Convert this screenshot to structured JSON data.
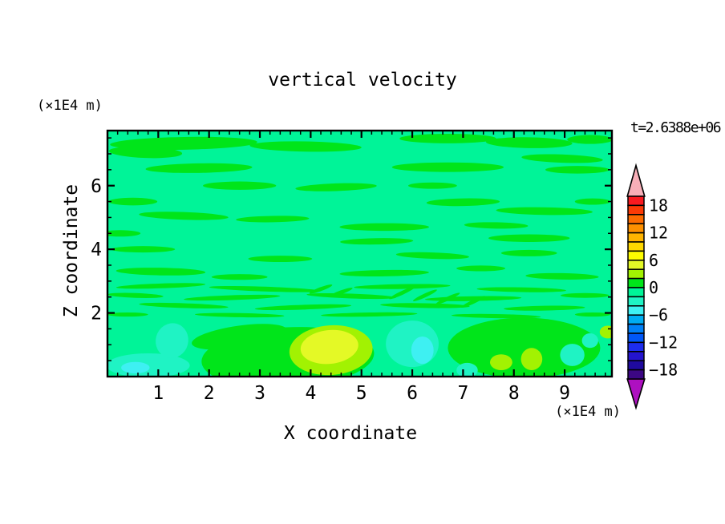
{
  "page": {
    "background": "#FFFFFF"
  },
  "chart_data": {
    "type": "filled-contour",
    "title": "vertical velocity",
    "timestamp_label": "t=2.6388e+06",
    "x_axis": {
      "label": "X coordinate",
      "units": "(×1E4 m)",
      "range": [
        0,
        9.93
      ],
      "major_ticks": [
        1,
        2,
        3,
        4,
        5,
        6,
        7,
        8,
        9
      ],
      "minor_tick_interval": 0.2
    },
    "y_axis": {
      "label": "Z coordinate",
      "units": "(×1E4 m)",
      "range": [
        0,
        7.73
      ],
      "major_ticks": [
        2,
        4,
        6
      ],
      "minor_tick_interval": 0.5
    },
    "colorbar": {
      "label_values": [
        18,
        12,
        6,
        0,
        -6,
        -12,
        -18
      ],
      "band_interval": 2,
      "value_range": [
        -20,
        20
      ],
      "over_color": "#F8AFB8",
      "under_color": "#AE10C0",
      "bands": [
        {
          "range": [
            18,
            20
          ],
          "color": "#F81A20"
        },
        {
          "range": [
            16,
            18
          ],
          "color": "#FB3A06"
        },
        {
          "range": [
            14,
            16
          ],
          "color": "#FD6B00"
        },
        {
          "range": [
            12,
            14
          ],
          "color": "#FE9000"
        },
        {
          "range": [
            10,
            12
          ],
          "color": "#FFB400"
        },
        {
          "range": [
            8,
            10
          ],
          "color": "#FFD800"
        },
        {
          "range": [
            6,
            8
          ],
          "color": "#FDFC00"
        },
        {
          "range": [
            4,
            6
          ],
          "color": "#E4F926"
        },
        {
          "range": [
            2,
            4
          ],
          "color": "#A2F202"
        },
        {
          "range": [
            0,
            2
          ],
          "color": "#00E51A"
        },
        {
          "range": [
            -2,
            0
          ],
          "color": "#00F498"
        },
        {
          "range": [
            -4,
            -2
          ],
          "color": "#1FF3C4"
        },
        {
          "range": [
            -6,
            -4
          ],
          "color": "#3EF0F2"
        },
        {
          "range": [
            -8,
            -6
          ],
          "color": "#00ACF2"
        },
        {
          "range": [
            -10,
            -8
          ],
          "color": "#0080F8"
        },
        {
          "range": [
            -12,
            -10
          ],
          "color": "#0057F8"
        },
        {
          "range": [
            -14,
            -12
          ],
          "color": "#1D2DEE"
        },
        {
          "range": [
            -16,
            -14
          ],
          "color": "#2414CF"
        },
        {
          "range": [
            -18,
            -16
          ],
          "color": "#1F0A9E"
        },
        {
          "range": [
            -20,
            -18
          ],
          "color": "#3C0784"
        }
      ]
    },
    "field": {
      "background_band_index": 10,
      "shape_format": [
        "band_index",
        "cx",
        "cy",
        "rx",
        "ry",
        "rot_deg"
      ],
      "shapes": [
        [
          9,
          1.5,
          7.33,
          1.45,
          0.2,
          -1
        ],
        [
          9,
          0.75,
          7.05,
          0.72,
          0.18,
          2
        ],
        [
          9,
          3.9,
          7.23,
          1.1,
          0.16,
          1
        ],
        [
          9,
          6.7,
          7.48,
          0.95,
          0.15,
          0
        ],
        [
          9,
          8.3,
          7.35,
          0.85,
          0.17,
          1
        ],
        [
          9,
          9.5,
          7.45,
          0.45,
          0.14,
          0
        ],
        [
          9,
          1.8,
          6.55,
          1.05,
          0.15,
          -1
        ],
        [
          9,
          6.7,
          6.58,
          1.1,
          0.15,
          0
        ],
        [
          9,
          8.95,
          6.85,
          0.8,
          0.13,
          2
        ],
        [
          9,
          9.25,
          6.5,
          0.63,
          0.12,
          0
        ],
        [
          9,
          2.6,
          6.0,
          0.72,
          0.13,
          0
        ],
        [
          9,
          4.5,
          5.95,
          0.8,
          0.12,
          -2
        ],
        [
          9,
          6.4,
          6.0,
          0.48,
          0.1,
          0
        ],
        [
          9,
          0.5,
          5.5,
          0.48,
          0.12,
          0
        ],
        [
          9,
          7.0,
          5.48,
          0.72,
          0.12,
          -1
        ],
        [
          9,
          9.55,
          5.5,
          0.35,
          0.1,
          0
        ],
        [
          9,
          1.5,
          5.05,
          0.88,
          0.12,
          2
        ],
        [
          9,
          3.25,
          4.95,
          0.72,
          0.1,
          -1
        ],
        [
          9,
          8.6,
          5.2,
          0.95,
          0.12,
          1
        ],
        [
          9,
          0.25,
          4.5,
          0.4,
          0.1,
          0
        ],
        [
          9,
          5.45,
          4.7,
          0.88,
          0.12,
          0
        ],
        [
          9,
          7.65,
          4.75,
          0.63,
          0.1,
          1
        ],
        [
          9,
          5.3,
          4.25,
          0.72,
          0.1,
          -1
        ],
        [
          9,
          8.3,
          4.35,
          0.8,
          0.12,
          0
        ],
        [
          9,
          0.7,
          4.0,
          0.63,
          0.1,
          0
        ],
        [
          9,
          6.4,
          3.8,
          0.72,
          0.1,
          2
        ],
        [
          9,
          3.4,
          3.7,
          0.63,
          0.1,
          0
        ],
        [
          9,
          8.3,
          3.88,
          0.55,
          0.1,
          0
        ],
        [
          9,
          1.05,
          3.3,
          0.88,
          0.12,
          1
        ],
        [
          9,
          5.45,
          3.25,
          0.88,
          0.1,
          -1
        ],
        [
          9,
          8.95,
          3.15,
          0.72,
          0.1,
          1
        ],
        [
          9,
          2.6,
          3.13,
          0.55,
          0.09,
          0
        ],
        [
          9,
          7.35,
          3.4,
          0.48,
          0.09,
          0
        ],
        [
          9,
          1.05,
          2.85,
          0.88,
          0.075,
          -2
        ],
        [
          9,
          3.1,
          2.75,
          1.1,
          0.075,
          2
        ],
        [
          9,
          5.8,
          2.83,
          0.95,
          0.075,
          -1
        ],
        [
          9,
          8.15,
          2.73,
          0.88,
          0.075,
          1
        ],
        [
          9,
          0.55,
          2.55,
          0.55,
          0.075,
          2
        ],
        [
          9,
          2.45,
          2.48,
          0.95,
          0.075,
          -2
        ],
        [
          9,
          4.8,
          2.53,
          0.88,
          0.075,
          2
        ],
        [
          9,
          7.2,
          2.45,
          0.95,
          0.075,
          -1
        ],
        [
          9,
          9.4,
          2.55,
          0.48,
          0.075,
          0
        ],
        [
          9,
          1.5,
          2.23,
          0.88,
          0.075,
          2
        ],
        [
          9,
          3.85,
          2.18,
          0.95,
          0.075,
          -2
        ],
        [
          9,
          6.25,
          2.23,
          0.88,
          0.075,
          1
        ],
        [
          9,
          8.6,
          2.15,
          0.8,
          0.075,
          -1
        ],
        [
          9,
          0.4,
          1.95,
          0.4,
          0.065,
          0
        ],
        [
          9,
          2.6,
          1.93,
          0.88,
          0.065,
          1
        ],
        [
          9,
          5.15,
          1.95,
          0.95,
          0.065,
          -1
        ],
        [
          9,
          7.65,
          1.9,
          0.88,
          0.065,
          1
        ],
        [
          9,
          9.55,
          1.95,
          0.35,
          0.065,
          0
        ],
        [
          9,
          5.8,
          2.63,
          0.28,
          0.06,
          -25
        ],
        [
          9,
          6.25,
          2.55,
          0.26,
          0.06,
          -25
        ],
        [
          9,
          6.7,
          2.45,
          0.26,
          0.06,
          -25
        ],
        [
          9,
          7.2,
          2.35,
          0.26,
          0.06,
          -25
        ],
        [
          9,
          4.2,
          2.75,
          0.24,
          0.06,
          -20
        ],
        [
          9,
          4.6,
          2.65,
          0.24,
          0.06,
          -20
        ],
        [
          9,
          3.55,
          0.6,
          1.7,
          0.95,
          -3
        ],
        [
          9,
          2.6,
          1.25,
          0.95,
          0.35,
          -8
        ],
        [
          9,
          8.2,
          0.9,
          1.5,
          0.95,
          0
        ],
        [
          8,
          4.4,
          0.83,
          0.82,
          0.78,
          -4
        ],
        [
          7,
          4.37,
          0.93,
          0.57,
          0.53,
          -6
        ],
        [
          8,
          7.75,
          0.45,
          0.22,
          0.25,
          0
        ],
        [
          8,
          8.35,
          0.55,
          0.21,
          0.35,
          0
        ],
        [
          8,
          9.85,
          1.4,
          0.16,
          0.2,
          0
        ],
        [
          11,
          0.8,
          0.35,
          0.82,
          0.38,
          0
        ],
        [
          11,
          1.27,
          1.13,
          0.32,
          0.55,
          15
        ],
        [
          11,
          6.0,
          1.03,
          0.52,
          0.73,
          0
        ],
        [
          11,
          7.08,
          0.2,
          0.21,
          0.23,
          0
        ],
        [
          11,
          9.15,
          0.68,
          0.24,
          0.35,
          0
        ],
        [
          11,
          9.5,
          1.13,
          0.16,
          0.23,
          0
        ],
        [
          12,
          6.2,
          0.83,
          0.22,
          0.43,
          0
        ],
        [
          12,
          0.55,
          0.28,
          0.28,
          0.18,
          0
        ]
      ]
    }
  }
}
